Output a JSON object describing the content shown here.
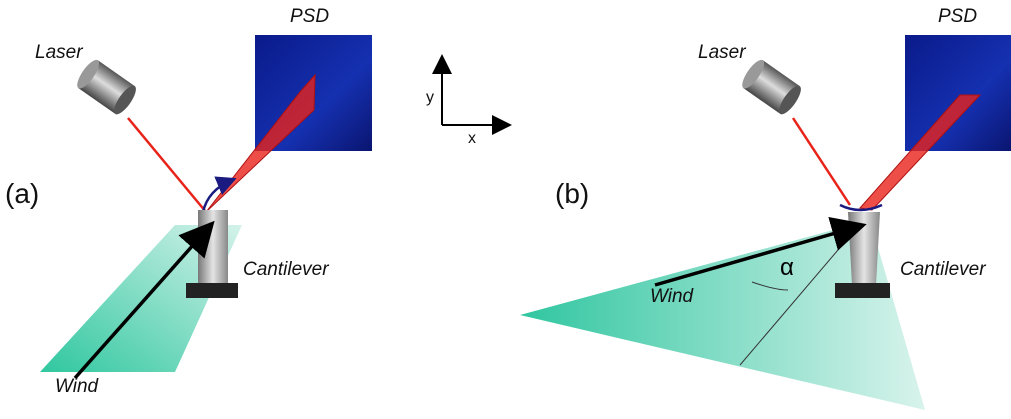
{
  "panels": [
    {
      "label": "(a)",
      "laser": "Laser",
      "psd": "PSD",
      "cantilever": "Cantilever",
      "wind": "Wind"
    },
    {
      "label": "(b)",
      "laser": "Laser",
      "psd": "PSD",
      "cantilever": "Cantilever",
      "wind": "Wind",
      "angle": "α"
    }
  ],
  "axes": {
    "y": "y",
    "x": "x"
  }
}
